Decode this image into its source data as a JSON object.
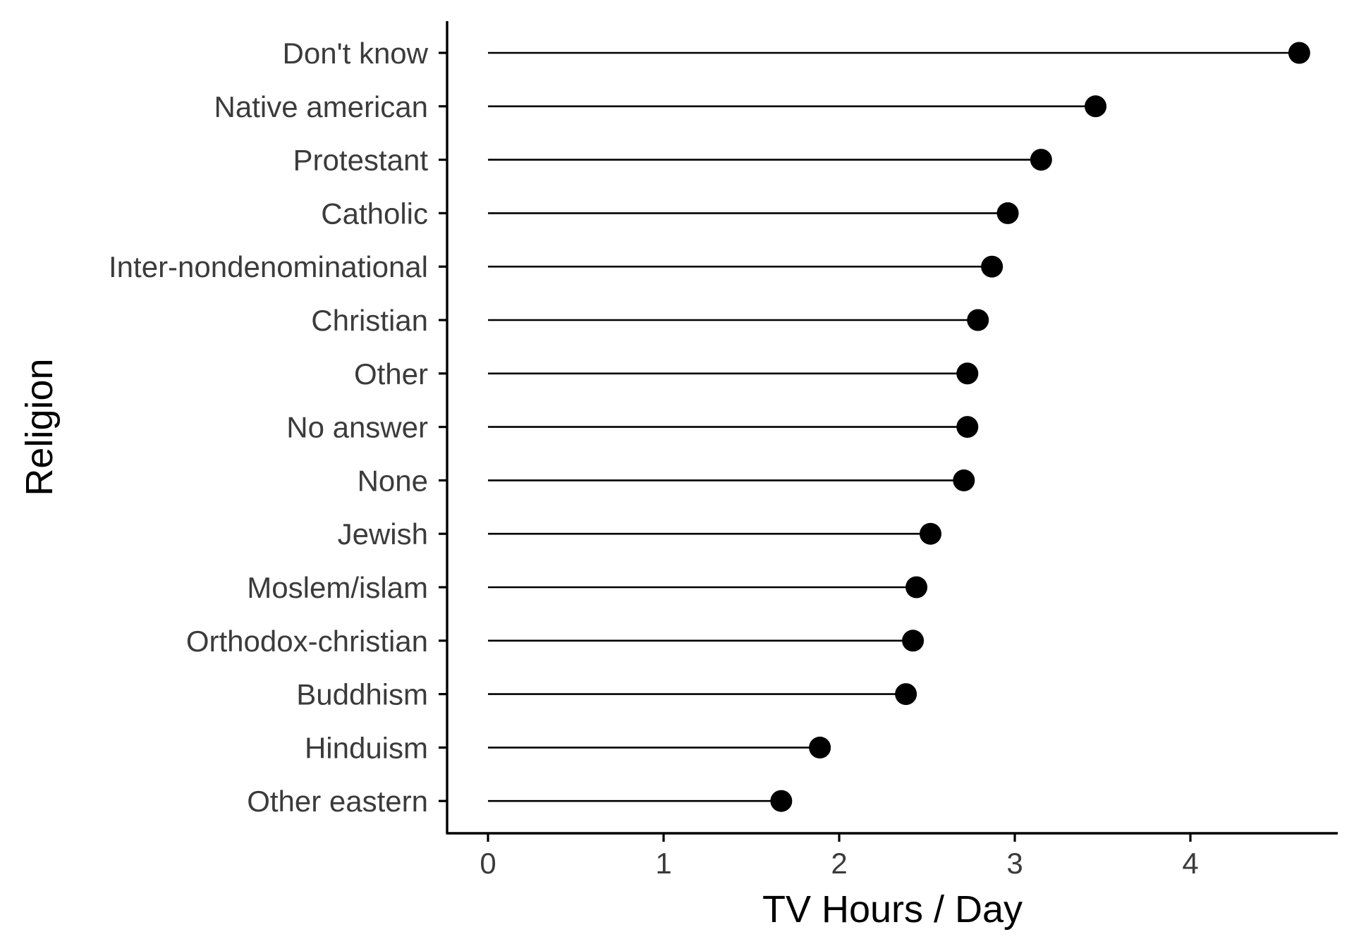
{
  "chart_data": {
    "type": "lollipop",
    "title": "",
    "xlabel": "TV Hours / Day",
    "ylabel": "Religion",
    "xlim": [
      -0.23,
      4.85
    ],
    "xticks": [
      0,
      1,
      2,
      3,
      4
    ],
    "grid": false,
    "legend": "none",
    "categories": [
      "Don't know",
      "Native american",
      "Protestant",
      "Catholic",
      "Inter-nondenominational",
      "Christian",
      "Other",
      "No answer",
      "None",
      "Jewish",
      "Moslem/islam",
      "Orthodox-christian",
      "Buddhism",
      "Hinduism",
      "Other eastern"
    ],
    "values": [
      4.62,
      3.46,
      3.15,
      2.96,
      2.87,
      2.79,
      2.73,
      2.73,
      2.71,
      2.52,
      2.44,
      2.42,
      2.38,
      1.89,
      1.67
    ],
    "colors": {
      "segment": "#000000",
      "point": "#000000",
      "axis": "#000000",
      "tick_label": "#3b3b3b"
    }
  }
}
